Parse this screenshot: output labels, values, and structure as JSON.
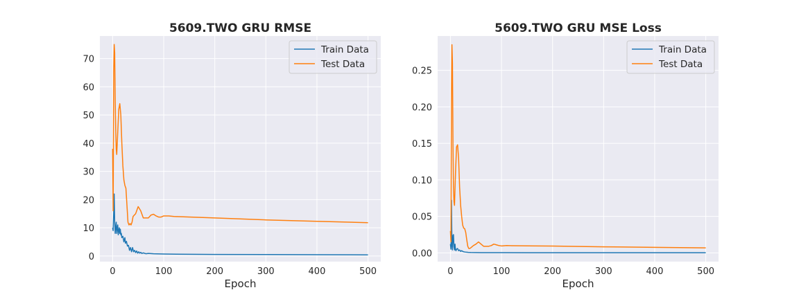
{
  "chart_data": [
    {
      "type": "line",
      "title": "5609.TWO  GRU RMSE",
      "xlabel": "Epoch",
      "ylabel": "",
      "xlim": [
        -25,
        525
      ],
      "ylim": [
        -2,
        78
      ],
      "xticks": [
        0,
        100,
        200,
        300,
        400,
        500
      ],
      "yticks": [
        0,
        10,
        20,
        30,
        40,
        50,
        60,
        70
      ],
      "ytick_labels": [
        "0",
        "10",
        "20",
        "30",
        "40",
        "50",
        "60",
        "70"
      ],
      "grid": true,
      "legend_position": "upper right",
      "series": [
        {
          "name": "Train Data",
          "color": "#1f77b4",
          "x": [
            0,
            1,
            2,
            3,
            4,
            5,
            6,
            7,
            8,
            9,
            10,
            11,
            12,
            13,
            14,
            15,
            16,
            17,
            18,
            20,
            22,
            24,
            25,
            27,
            29,
            31,
            33,
            35,
            37,
            39,
            41,
            43,
            45,
            47,
            49,
            51,
            53,
            55,
            57,
            60,
            65,
            70,
            80,
            100,
            150,
            200,
            300,
            400,
            500
          ],
          "values": [
            10,
            9,
            15,
            22,
            12,
            8,
            10,
            12,
            8,
            10,
            11,
            7.5,
            9,
            10,
            8,
            9.5,
            7.5,
            8,
            6.5,
            7,
            5,
            6.5,
            4.5,
            5.2,
            3.5,
            3.8,
            2,
            3,
            1.5,
            3,
            1.5,
            2,
            1.2,
            1.8,
            1,
            1.5,
            1,
            1.3,
            0.9,
            1.1,
            0.8,
            0.9,
            0.8,
            0.7,
            0.6,
            0.55,
            0.5,
            0.45,
            0.4
          ]
        },
        {
          "name": "Test Data",
          "color": "#ff7f0e",
          "x": [
            0,
            1,
            2,
            3,
            4,
            5,
            6,
            7,
            8,
            10,
            12,
            14,
            16,
            18,
            20,
            22,
            24,
            26,
            28,
            30,
            32,
            34,
            36,
            38,
            40,
            45,
            50,
            55,
            60,
            65,
            70,
            75,
            80,
            85,
            90,
            95,
            100,
            110,
            120,
            200,
            300,
            400,
            500
          ],
          "values": [
            38,
            16,
            65,
            75,
            72,
            55,
            45,
            38,
            36,
            44,
            52,
            54,
            50,
            40,
            32,
            27,
            25,
            24,
            18,
            12,
            11,
            11.5,
            11,
            12,
            14,
            15,
            17.5,
            16,
            13.5,
            13.5,
            13.5,
            14.5,
            14.8,
            14.2,
            13.8,
            13.8,
            14.2,
            14.2,
            14,
            13.5,
            12.8,
            12.3,
            11.8
          ]
        }
      ]
    },
    {
      "type": "line",
      "title": "5609.TWO  GRU MSE Loss",
      "xlabel": "Epoch",
      "ylabel": "",
      "xlim": [
        -25,
        525
      ],
      "ylim": [
        -0.012,
        0.297
      ],
      "xticks": [
        0,
        100,
        200,
        300,
        400,
        500
      ],
      "yticks": [
        0,
        0.05,
        0.1,
        0.15,
        0.2,
        0.25
      ],
      "ytick_labels": [
        "0.00",
        "0.05",
        "0.10",
        "0.15",
        "0.20",
        "0.25"
      ],
      "grid": true,
      "legend_position": "upper right",
      "series": [
        {
          "name": "Train Data",
          "color": "#1f77b4",
          "x": [
            0,
            1,
            2,
            3,
            4,
            5,
            6,
            7,
            8,
            9,
            10,
            11,
            12,
            14,
            16,
            18,
            20,
            22,
            24,
            26,
            28,
            30,
            35,
            40,
            50,
            60,
            100,
            200,
            300,
            400,
            500
          ],
          "values": [
            0.012,
            0.005,
            0.072,
            0.01,
            0.004,
            0.024,
            0.025,
            0.008,
            0.004,
            0.012,
            0.004,
            0.003,
            0.005,
            0.006,
            0.003,
            0.004,
            0.002,
            0.003,
            0.002,
            0.0015,
            0.0012,
            0.001,
            0.0007,
            0.0005,
            0.0004,
            0.0003,
            0.0003,
            0.0002,
            0.0002,
            0.0002,
            0.0002
          ]
        },
        {
          "name": "Test Data",
          "color": "#ff7f0e",
          "x": [
            0,
            1,
            2,
            3,
            4,
            5,
            6,
            7,
            8,
            10,
            12,
            14,
            16,
            18,
            20,
            22,
            24,
            26,
            28,
            30,
            32,
            34,
            36,
            38,
            40,
            45,
            50,
            55,
            60,
            65,
            70,
            75,
            80,
            85,
            90,
            95,
            100,
            110,
            120,
            200,
            300,
            400,
            500
          ],
          "values": [
            0.03,
            0.015,
            0.2,
            0.285,
            0.26,
            0.15,
            0.09,
            0.07,
            0.065,
            0.11,
            0.145,
            0.148,
            0.13,
            0.09,
            0.065,
            0.05,
            0.038,
            0.034,
            0.033,
            0.028,
            0.018,
            0.009,
            0.006,
            0.006,
            0.007,
            0.01,
            0.012,
            0.015,
            0.012,
            0.009,
            0.009,
            0.009,
            0.01,
            0.012,
            0.011,
            0.01,
            0.0095,
            0.01,
            0.0098,
            0.0093,
            0.0083,
            0.0075,
            0.0068
          ]
        }
      ]
    }
  ]
}
